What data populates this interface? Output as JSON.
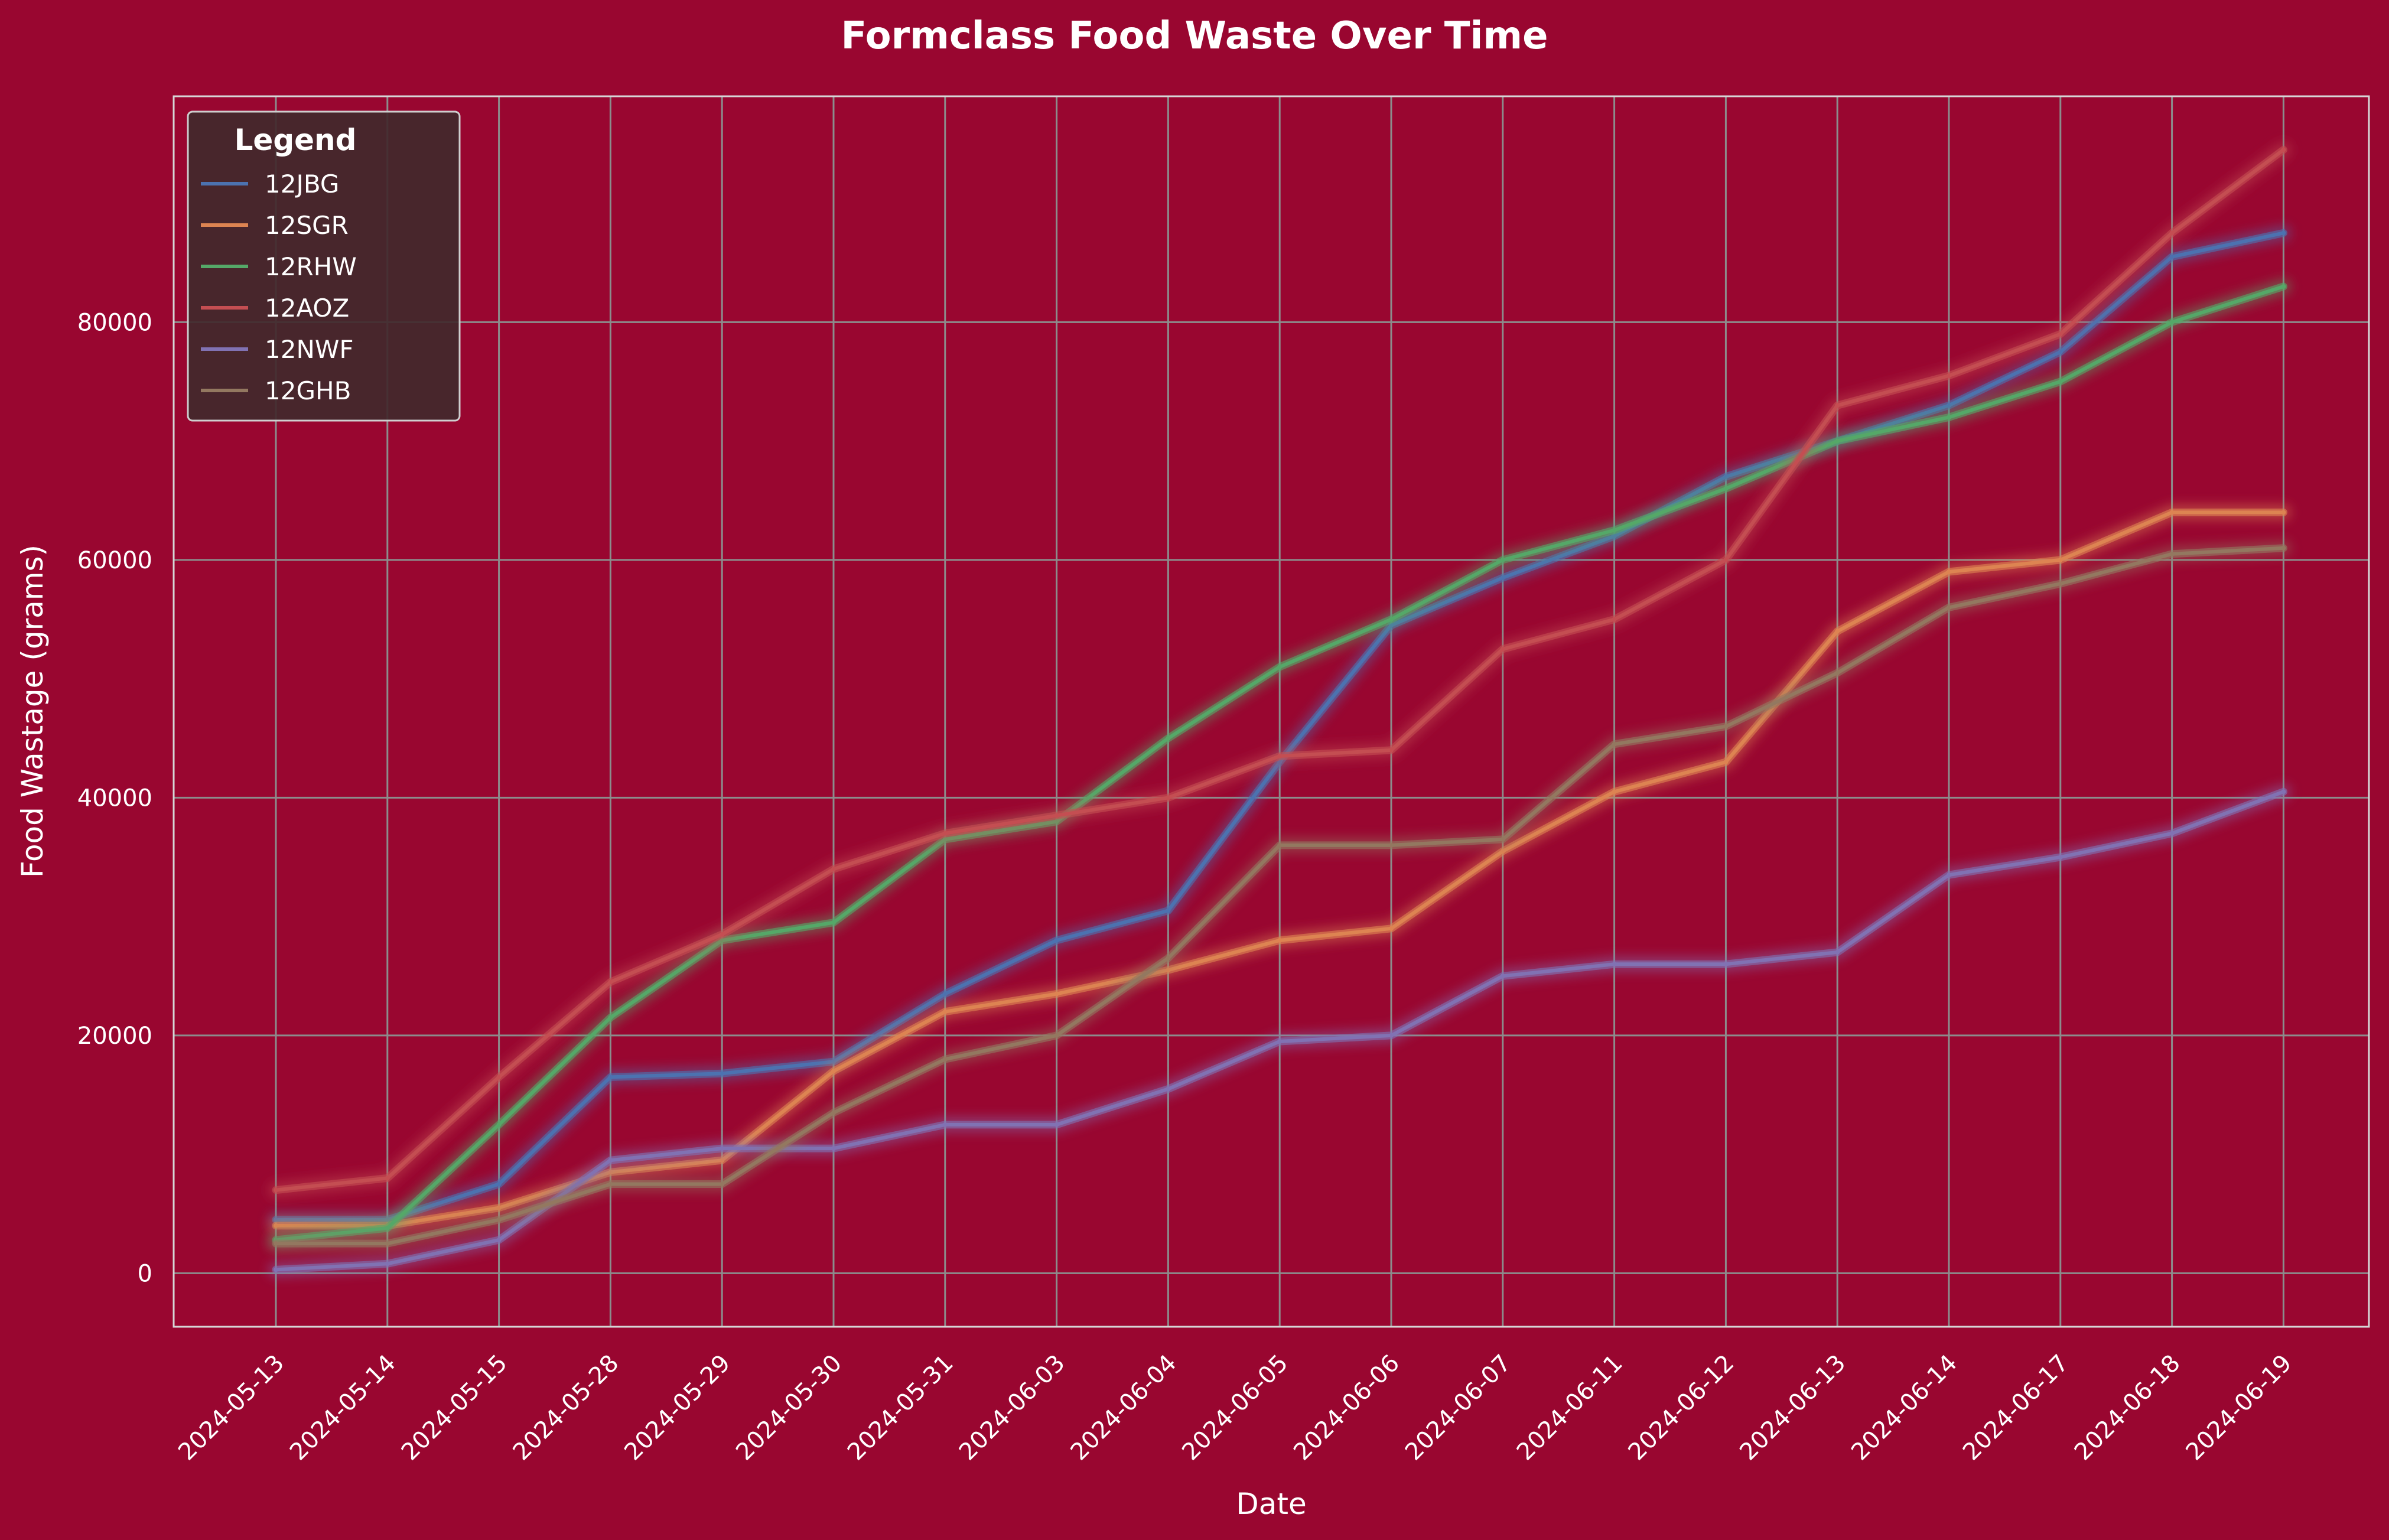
{
  "chart_data": {
    "type": "line",
    "title": "Formclass Food Waste Over Time",
    "xlabel": "Date",
    "ylabel": "Food Wastage (grams)",
    "ylim": [
      -4500,
      99000
    ],
    "yticks": [
      0,
      20000,
      40000,
      60000,
      80000
    ],
    "grid": true,
    "legend": {
      "title": "Legend",
      "placement": "top-left"
    },
    "x": [
      "2024-05-13",
      "2024-05-14",
      "2024-05-15",
      "2024-05-28",
      "2024-05-29",
      "2024-05-30",
      "2024-05-31",
      "2024-06-03",
      "2024-06-04",
      "2024-06-05",
      "2024-06-06",
      "2024-06-07",
      "2024-06-11",
      "2024-06-12",
      "2024-06-13",
      "2024-06-14",
      "2024-06-17",
      "2024-06-18",
      "2024-06-19"
    ],
    "series": [
      {
        "name": "12JBG",
        "color": "#4c72b0",
        "values": [
          4500,
          4500,
          7500,
          16500,
          16800,
          17800,
          23500,
          28000,
          30500,
          43000,
          54500,
          58500,
          62000,
          67000,
          70000,
          73000,
          77500,
          85500,
          87500
        ]
      },
      {
        "name": "12SGR",
        "color": "#dd8452",
        "values": [
          4000,
          4000,
          5500,
          8500,
          9500,
          17000,
          22000,
          23500,
          25500,
          28000,
          29000,
          35500,
          40500,
          43000,
          54000,
          59000,
          60000,
          64000,
          64000
        ]
      },
      {
        "name": "12RHW",
        "color": "#55a868",
        "values": [
          2800,
          3800,
          12500,
          21500,
          28000,
          29500,
          36500,
          38000,
          45000,
          51000,
          55000,
          60000,
          62500,
          66000,
          70000,
          72000,
          75000,
          80000,
          83000
        ]
      },
      {
        "name": "12AOZ",
        "color": "#c44e52",
        "values": [
          7000,
          8000,
          16500,
          24500,
          28500,
          34000,
          37000,
          38500,
          40000,
          43500,
          44000,
          52500,
          55000,
          60000,
          73000,
          75500,
          79000,
          87500,
          94500
        ]
      },
      {
        "name": "12NWF",
        "color": "#8172b3",
        "values": [
          300,
          800,
          2800,
          9500,
          10500,
          10500,
          12500,
          12500,
          15500,
          19500,
          20000,
          25000,
          26000,
          26000,
          27000,
          33500,
          35000,
          37000,
          40500
        ]
      },
      {
        "name": "12GHB",
        "color": "#937860",
        "values": [
          2500,
          2500,
          4500,
          7500,
          7500,
          13500,
          18000,
          20000,
          26500,
          36000,
          36000,
          36500,
          44500,
          46000,
          50500,
          56000,
          58000,
          60500,
          61000
        ]
      }
    ]
  }
}
